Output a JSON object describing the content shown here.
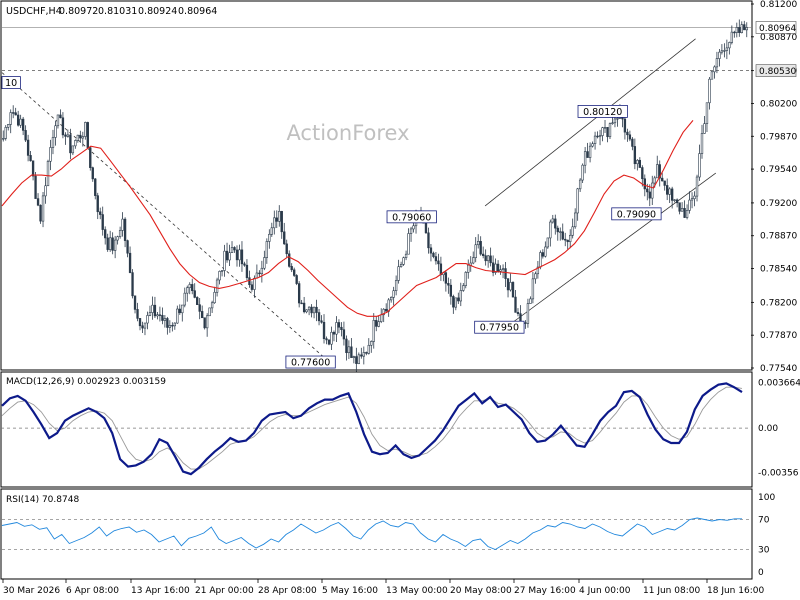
{
  "header": {
    "symbol": "USDCHF,H4",
    "open": "0.80972",
    "high": "0.81031",
    "low": "0.80924",
    "close": "0.80964"
  },
  "watermark": "ActionForex",
  "colors": {
    "candle": "#2b3a4a",
    "ma": "#e0201b",
    "macd": "#0d1a8a",
    "signal": "#9a9a9a",
    "rsi": "#2288dd",
    "label_border": "#1a237e",
    "dashed": "#555555"
  },
  "chart_data": [
    {
      "type": "candlestick",
      "title": "USDCHF,H4",
      "ylim": [
        0.7754,
        0.812
      ],
      "yticks": [
        "0.81200",
        "0.80870",
        "0.80530",
        "0.80200",
        "0.79870",
        "0.79540",
        "0.79200",
        "0.78870",
        "0.78540",
        "0.78200",
        "0.77870",
        "0.77540"
      ],
      "xticks": [
        "30 Mar 2026",
        "6 Apr 08:00",
        "13 Apr 16:00",
        "21 Apr 00:00",
        "28 Apr 08:00",
        "5 May 16:00",
        "13 May 00:00",
        "20 May 08:00",
        "27 May 16:00",
        "4 Jun 00:00",
        "11 Jun 08:00",
        "18 Jun 16:00"
      ],
      "price_labels": {
        "current": "0.80964",
        "level": "0.80530"
      },
      "horizontal_levels": [
        0.8053,
        0.80964
      ],
      "annotations": [
        {
          "label": "10",
          "value": 0.8041
        },
        {
          "label": "0.77600",
          "value": 0.776
        },
        {
          "label": "0.79060",
          "value": 0.7906
        },
        {
          "label": "0.77950",
          "value": 0.7795
        },
        {
          "label": "0.80120",
          "value": 0.8012
        },
        {
          "label": "0.79090",
          "value": 0.7909
        }
      ],
      "path": [
        0.7985,
        0.8015,
        0.8005,
        0.7985,
        0.7945,
        0.7905,
        0.796,
        0.8005,
        0.7995,
        0.7975,
        0.7985,
        0.7995,
        0.7945,
        0.7905,
        0.788,
        0.7875,
        0.7905,
        0.785,
        0.7805,
        0.78,
        0.781,
        0.7808,
        0.7795,
        0.7802,
        0.782,
        0.7832,
        0.7815,
        0.78,
        0.7822,
        0.7845,
        0.787,
        0.7875,
        0.7862,
        0.7838,
        0.784,
        0.7868,
        0.789,
        0.791,
        0.788,
        0.7845,
        0.782,
        0.7815,
        0.7818,
        0.779,
        0.7785,
        0.7805,
        0.778,
        0.7762,
        0.776,
        0.7775,
        0.78,
        0.7815,
        0.7822,
        0.7845,
        0.787,
        0.7895,
        0.7906,
        0.788,
        0.786,
        0.7845,
        0.783,
        0.7815,
        0.7842,
        0.7862,
        0.788,
        0.786,
        0.7855,
        0.7858,
        0.7838,
        0.7815,
        0.7795,
        0.783,
        0.786,
        0.788,
        0.7905,
        0.789,
        0.788,
        0.792,
        0.796,
        0.798,
        0.7995,
        0.799,
        0.8005,
        0.8012,
        0.7985,
        0.796,
        0.7945,
        0.793,
        0.7952,
        0.794,
        0.792,
        0.7915,
        0.7909,
        0.793,
        0.799,
        0.804,
        0.8065,
        0.808,
        0.8085,
        0.8092,
        0.80964
      ],
      "ma_path": [
        0.7917,
        0.7929,
        0.794,
        0.7948,
        0.7948,
        0.7947,
        0.7954,
        0.7963,
        0.797,
        0.7977,
        0.7975,
        0.7962,
        0.7949,
        0.7936,
        0.7922,
        0.7908,
        0.7891,
        0.7874,
        0.7859,
        0.7848,
        0.784,
        0.7836,
        0.7834,
        0.7836,
        0.7839,
        0.7842,
        0.7845,
        0.785,
        0.7859,
        0.7866,
        0.7861,
        0.7852,
        0.7842,
        0.7833,
        0.7824,
        0.7815,
        0.7809,
        0.7806,
        0.7806,
        0.781,
        0.7819,
        0.7828,
        0.7837,
        0.7841,
        0.7845,
        0.7852,
        0.7859,
        0.7859,
        0.7855,
        0.7852,
        0.7851,
        0.785,
        0.7849,
        0.7848,
        0.7853,
        0.7858,
        0.7863,
        0.787,
        0.7879,
        0.7892,
        0.791,
        0.7929,
        0.7942,
        0.7948,
        0.7945,
        0.7938,
        0.7935,
        0.7953,
        0.7973,
        0.7991,
        0.8003
      ],
      "ma_start_frac": 0.0,
      "ma_end_frac": 0.9225,
      "channels": [
        {
          "from": {
            "t": 0.645,
            "v": 0.7917
          },
          "to": {
            "t": 0.926,
            "v": 0.8085
          }
        },
        {
          "from": {
            "t": 0.673,
            "v": 0.7795
          },
          "to": {
            "t": 0.953,
            "v": 0.795
          }
        },
        {
          "from": {
            "t": 0.0,
            "v": 0.8051
          },
          "to": {
            "t": 0.44,
            "v": 0.7758
          }
        }
      ]
    },
    {
      "type": "line",
      "title": "MACD(12,26,9) 0.002923 0.003159",
      "ylim": [
        -0.0045,
        0.0042
      ],
      "ytick_labels": [
        {
          "label": "0.003664",
          "value": 0.003664
        },
        {
          "label": "0.00",
          "value": 0.0
        },
        {
          "label": "-0.00356",
          "value": -0.00356
        }
      ],
      "series": [
        {
          "values": [
            0.0018,
            0.0024,
            0.0026,
            0.0022,
            0.0013,
            0.0003,
            -0.0008,
            -0.0004,
            0.0006,
            0.001,
            0.0013,
            0.0016,
            0.0013,
            0.0008,
            -0.0004,
            -0.0025,
            -0.0031,
            -0.003,
            -0.0027,
            -0.0021,
            -0.0009,
            -0.0012,
            -0.0023,
            -0.0035,
            -0.0037,
            -0.0032,
            -0.0025,
            -0.0019,
            -0.0014,
            -0.0008,
            -0.0011,
            -0.001,
            -0.0004,
            0.0006,
            0.0011,
            0.0012,
            0.0013,
            0.0008,
            0.001,
            0.0016,
            0.002,
            0.0023,
            0.0023,
            0.0026,
            0.0028,
            0.0013,
            -0.0005,
            -0.0019,
            -0.0021,
            -0.002,
            -0.0014,
            -0.0021,
            -0.0024,
            -0.0022,
            -0.0016,
            -0.001,
            -0.0002,
            0.0008,
            0.0018,
            0.0023,
            0.0028,
            0.002,
            0.0025,
            0.0017,
            0.0019,
            0.0013,
            0.0007,
            -0.0004,
            -0.0011,
            -0.001,
            -0.0005,
            0.0002,
            -0.0006,
            -0.0014,
            -0.0015,
            -0.0005,
            0.0006,
            0.0013,
            0.0018,
            0.0029,
            0.003,
            0.0025,
            0.0011,
            -0.0001,
            -0.0009,
            -0.0012,
            -0.0012,
            -0.0003,
            0.0015,
            0.0026,
            0.0031,
            0.0035,
            0.0036,
            0.0033,
            0.0029
          ]
        },
        {
          "values": [
            0.001,
            0.0016,
            0.0021,
            0.0022,
            0.0019,
            0.0013,
            0.0004,
            -0.0002,
            0.0,
            0.0006,
            0.001,
            0.0013,
            0.0014,
            0.0012,
            0.0006,
            -0.0006,
            -0.0018,
            -0.0025,
            -0.0027,
            -0.0025,
            -0.0019,
            -0.0016,
            -0.002,
            -0.0028,
            -0.0033,
            -0.0033,
            -0.0029,
            -0.0024,
            -0.0019,
            -0.0013,
            -0.0011,
            -0.001,
            -0.0007,
            -0.0001,
            0.0005,
            0.0009,
            0.0011,
            0.001,
            0.001,
            0.0013,
            0.0016,
            0.0019,
            0.0021,
            0.0023,
            0.0025,
            0.002,
            0.0009,
            -0.0005,
            -0.0014,
            -0.0018,
            -0.0017,
            -0.0019,
            -0.0022,
            -0.0022,
            -0.002,
            -0.0015,
            -0.0009,
            -0.0001,
            0.0009,
            0.0016,
            0.0022,
            0.0022,
            0.0024,
            0.002,
            0.0019,
            0.0016,
            0.0011,
            0.0004,
            -0.0004,
            -0.0008,
            -0.0007,
            -0.0003,
            -0.0004,
            -0.0009,
            -0.0012,
            -0.001,
            -0.0003,
            0.0005,
            0.0012,
            0.0021,
            0.0026,
            0.0026,
            0.0019,
            0.0009,
            0.0,
            -0.0006,
            -0.0009,
            -0.0007,
            0.0003,
            0.0015,
            0.0023,
            0.0029,
            0.0033,
            0.0033,
            0.0032
          ]
        }
      ]
    },
    {
      "type": "line",
      "title": "RSI(14) 70.8748",
      "ylim": [
        0,
        100
      ],
      "yticks": [
        100,
        70,
        30,
        0
      ],
      "levels": [
        70,
        30
      ],
      "series": [
        {
          "values": [
            62,
            64,
            66,
            61,
            63,
            57,
            59,
            44,
            50,
            38,
            42,
            46,
            52,
            60,
            48,
            55,
            58,
            60,
            53,
            56,
            50,
            40,
            44,
            48,
            35,
            45,
            48,
            52,
            60,
            44,
            38,
            42,
            46,
            38,
            32,
            37,
            44,
            40,
            50,
            56,
            64,
            58,
            52,
            56,
            62,
            66,
            58,
            48,
            44,
            56,
            64,
            68,
            62,
            60,
            66,
            64,
            52,
            44,
            40,
            50,
            44,
            40,
            34,
            42,
            44,
            34,
            30,
            36,
            42,
            38,
            44,
            52,
            56,
            62,
            60,
            66,
            64,
            60,
            58,
            64,
            60,
            54,
            50,
            48,
            56,
            64,
            60,
            50,
            54,
            58,
            56,
            62,
            70,
            72,
            70,
            68,
            70,
            69,
            71,
            70.87
          ]
        }
      ]
    }
  ]
}
